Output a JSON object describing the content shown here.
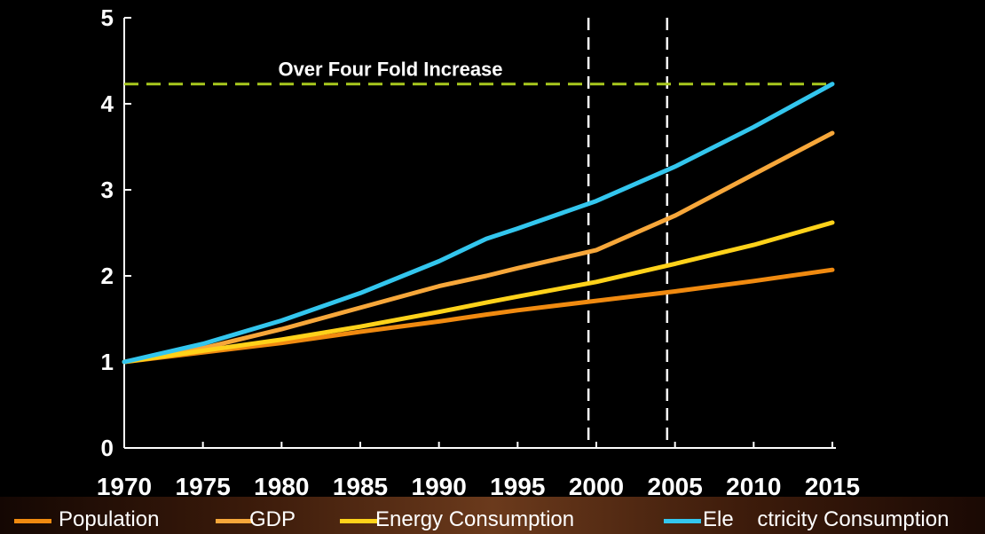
{
  "chart_data": {
    "type": "line",
    "title": "",
    "xlabel": "",
    "ylabel": "",
    "xlim": [
      1970,
      2015
    ],
    "ylim": [
      0,
      5
    ],
    "x_ticks": [
      "1970",
      "1975",
      "1980",
      "1985",
      "1990",
      "1995",
      "2000",
      "2005",
      "2010",
      "2015"
    ],
    "y_ticks": [
      "0",
      "1",
      "2",
      "3",
      "4",
      "5"
    ],
    "grid": false,
    "annotation": {
      "text": "Over Four Fold Increase",
      "y": 4.23,
      "color": "#a8c81e"
    },
    "vlines": [
      1999.5,
      2004.5
    ],
    "x": [
      1970,
      1975,
      1980,
      1985,
      1990,
      1993,
      1995,
      2000,
      2005,
      2010,
      2015
    ],
    "series": [
      {
        "name": "Population",
        "color": "#f08a10",
        "values": [
          1.0,
          1.11,
          1.22,
          1.35,
          1.47,
          1.55,
          1.6,
          1.71,
          1.82,
          1.94,
          2.07
        ]
      },
      {
        "name": "GDP",
        "color": "#f7a73a",
        "values": [
          1.0,
          1.16,
          1.38,
          1.63,
          1.88,
          2.0,
          2.09,
          2.3,
          2.7,
          3.18,
          3.66
        ]
      },
      {
        "name": "Energy Consumption",
        "color": "#ffd21a",
        "values": [
          1.0,
          1.13,
          1.26,
          1.41,
          1.58,
          1.69,
          1.76,
          1.93,
          2.14,
          2.36,
          2.62
        ]
      },
      {
        "name": "Electricity Consumption",
        "color": "#33c6ee",
        "values": [
          1.0,
          1.21,
          1.48,
          1.8,
          2.17,
          2.43,
          2.55,
          2.87,
          3.27,
          3.73,
          4.23
        ]
      }
    ]
  },
  "legend": [
    {
      "label": "Population",
      "color": "#f08a10"
    },
    {
      "label": "GDP",
      "color": "#f7a73a"
    },
    {
      "label": "Energy Consumption",
      "color": "#ffd21a"
    },
    {
      "label": "Ele    ctricity Consumption",
      "color": "#33c6ee"
    }
  ]
}
